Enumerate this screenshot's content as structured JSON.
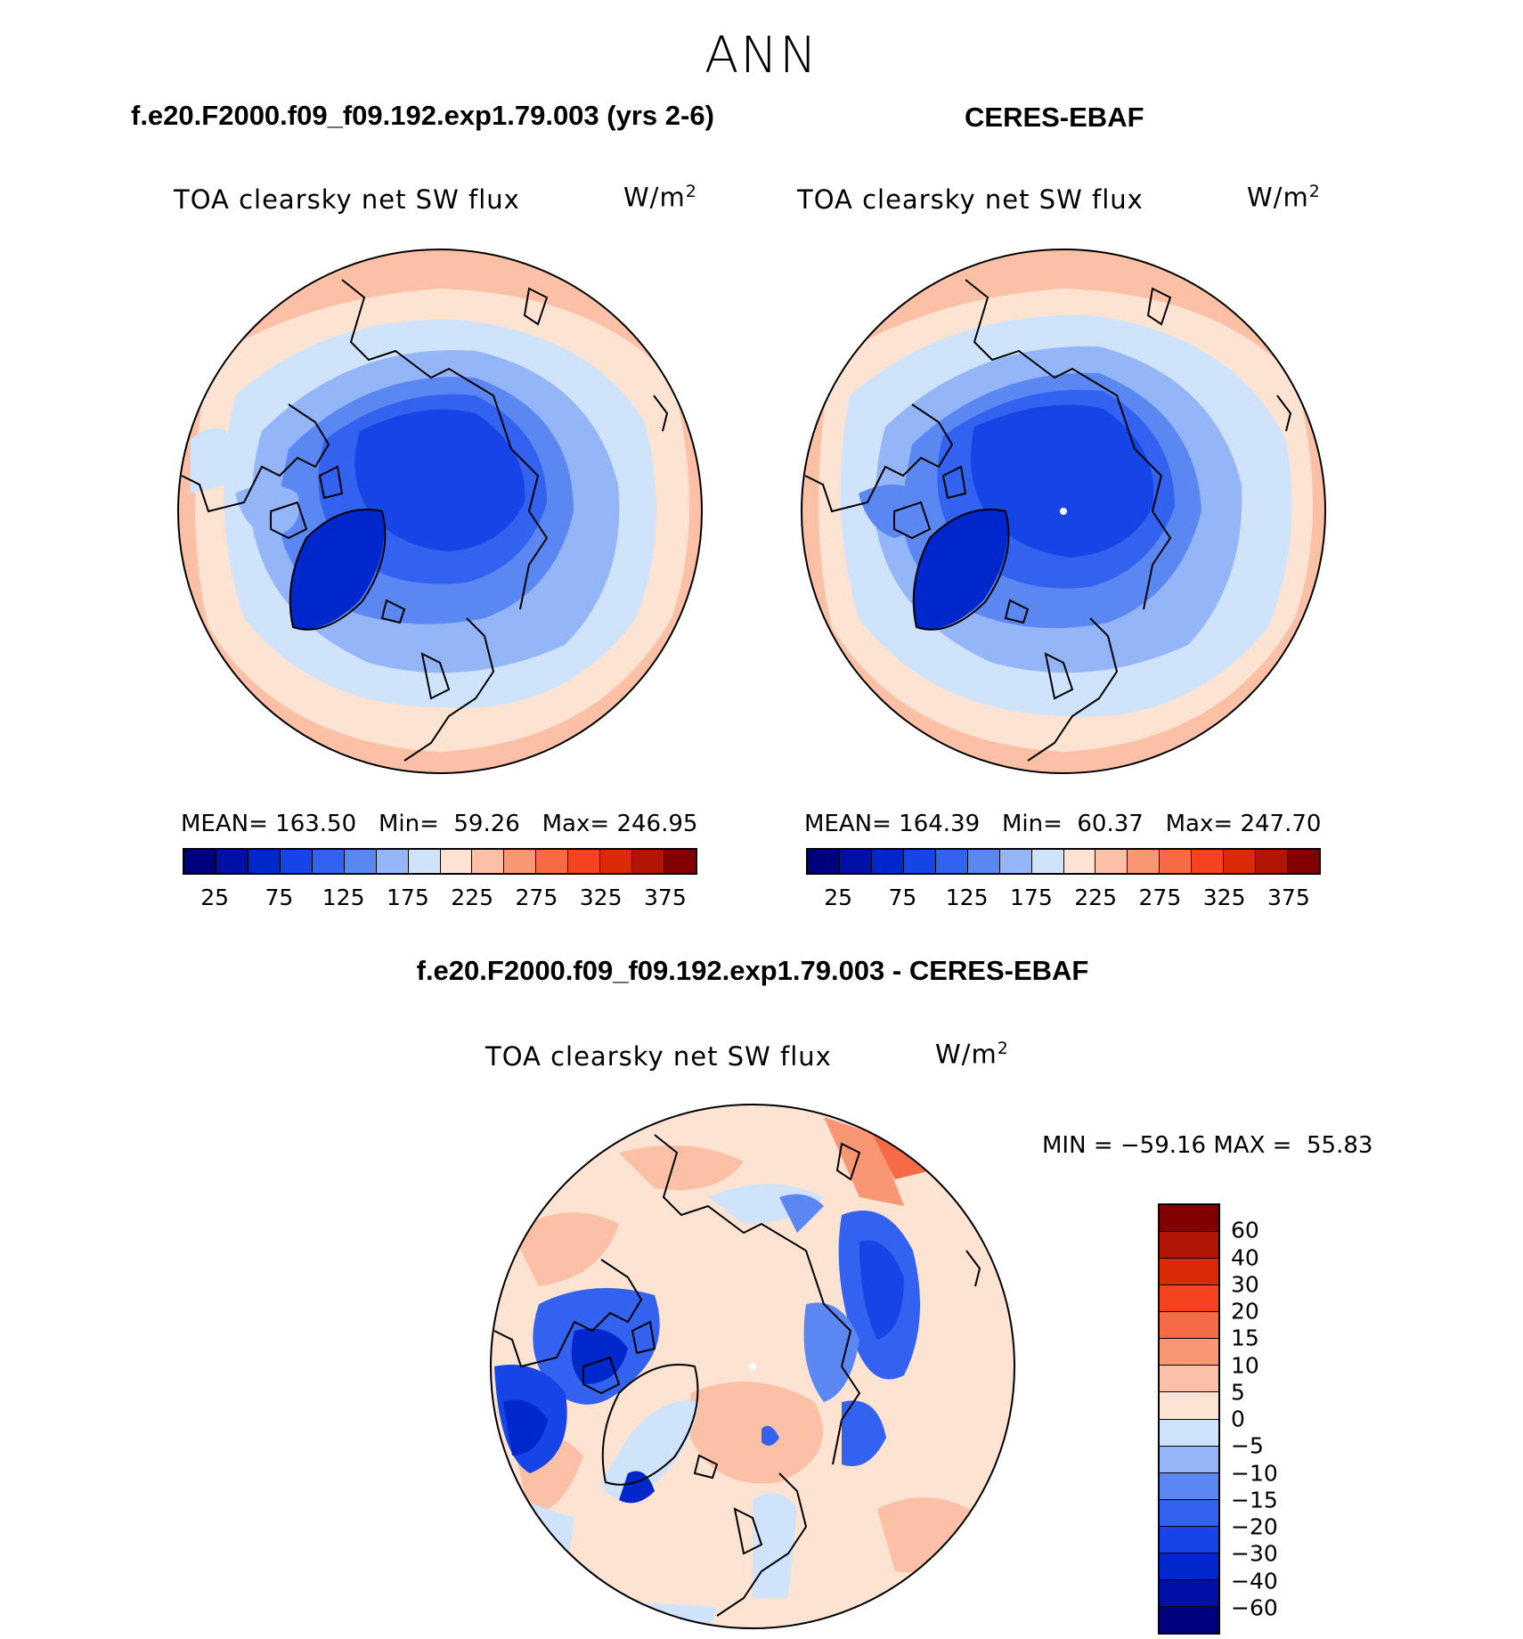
{
  "figure": {
    "title": "ANN",
    "units": "W/m",
    "units_sup": "2",
    "variable": "TOA clearsky net SW flux"
  },
  "panels": {
    "model": {
      "title": "f.e20.F2000.f09_f09.192.exp1.79.003 (yrs 2-6)",
      "mean_label": "MEAN=",
      "mean_value": "163.50",
      "min_label": "Min=",
      "min_value": "59.26",
      "max_label": "Max=",
      "max_value": "246.95"
    },
    "obs": {
      "title": "CERES-EBAF",
      "mean_label": "MEAN=",
      "mean_value": "164.39",
      "min_label": "Min=",
      "min_value": "60.37",
      "max_label": "Max=",
      "max_value": "247.70"
    },
    "diff": {
      "title": "f.e20.F2000.f09_f09.192.exp1.79.003 - CERES-EBAF",
      "min_label": "MIN =",
      "min_value": "−59.16",
      "max_label": "MAX =",
      "max_value": "55.83"
    }
  },
  "colorbar_abs": {
    "colors": [
      "#00007f",
      "#0010a6",
      "#0027cc",
      "#1744e6",
      "#3362f0",
      "#5b87f2",
      "#94b5f7",
      "#cfe3fb",
      "#fde3d2",
      "#fbc0a5",
      "#f99674",
      "#f76a46",
      "#f4431e",
      "#da2a08",
      "#b01505",
      "#820000"
    ],
    "tick_labels": [
      "25",
      "75",
      "125",
      "175",
      "225",
      "275",
      "325",
      "375"
    ]
  },
  "colorbar_diff": {
    "colors_top_to_bottom": [
      "#820000",
      "#b01505",
      "#da2a08",
      "#f4431e",
      "#f76a46",
      "#f99674",
      "#fbc0a5",
      "#fde3d2",
      "#cfe3fb",
      "#94b5f7",
      "#5b87f2",
      "#3362f0",
      "#1744e6",
      "#0027cc",
      "#0010a6",
      "#00007f"
    ],
    "tick_labels_top_to_bottom": [
      "60",
      "40",
      "30",
      "20",
      "15",
      "10",
      "5",
      "0",
      "−5",
      "−10",
      "−15",
      "−20",
      "−30",
      "−40",
      "−60"
    ]
  }
}
